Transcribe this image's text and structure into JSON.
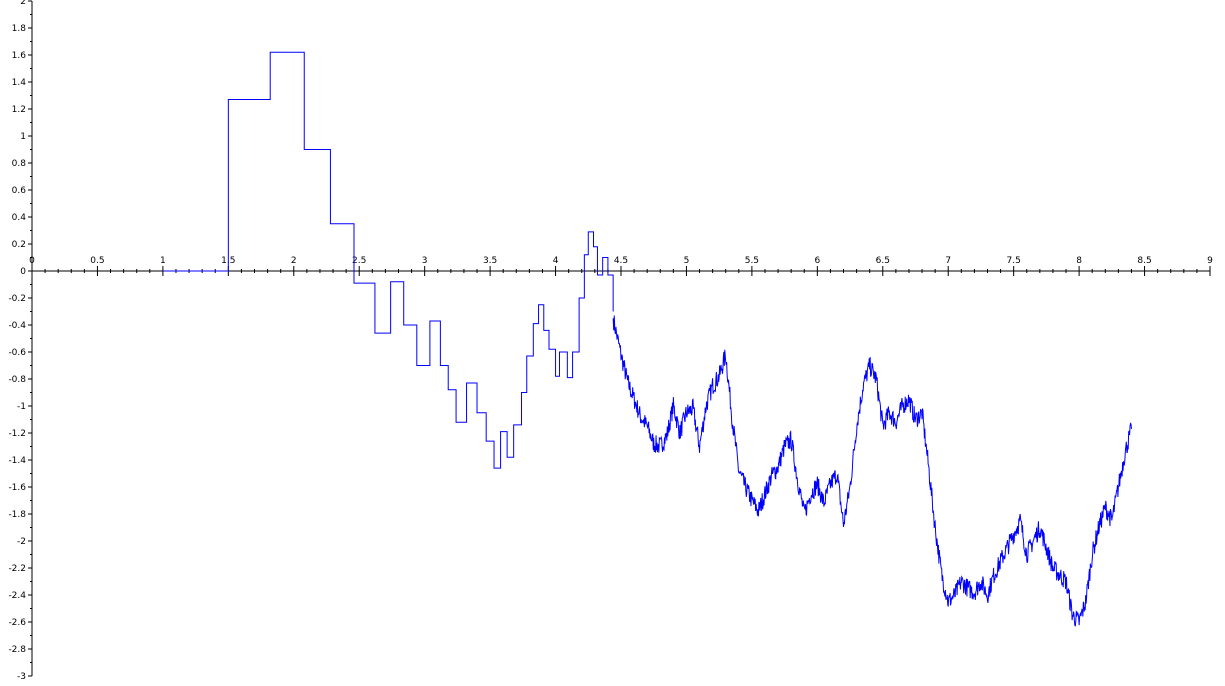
{
  "chart_data": {
    "type": "line",
    "title": "",
    "xlabel": "",
    "ylabel": "",
    "xlim": [
      0,
      9
    ],
    "ylim": [
      -3,
      2
    ],
    "x_ticks": [
      "0",
      "0.5",
      "1",
      "1.5",
      "2",
      "2.5",
      "3",
      "3.5",
      "4",
      "4.5",
      "5",
      "5.5",
      "6",
      "6.5",
      "7",
      "7.5",
      "8",
      "8.5",
      "9"
    ],
    "y_ticks": [
      "2",
      "1.8",
      "1.6",
      "1.4",
      "1.2",
      "1",
      "0.8",
      "0.6",
      "0.4",
      "0.2",
      "0",
      "-0.2",
      "-0.4",
      "-0.6",
      "-0.8",
      "-1",
      "-1.2",
      "-1.4",
      "-1.6",
      "-1.8",
      "-2",
      "-2.2",
      "-2.4",
      "-2.6",
      "-2.8",
      "-3"
    ],
    "grid": false,
    "series_color": "#0000ff",
    "series": [
      {
        "style": "step",
        "x": [
          1.0,
          1.5,
          1.82,
          2.08,
          2.28,
          2.46,
          2.62,
          2.74,
          2.84,
          2.94,
          3.04,
          3.12,
          3.18,
          3.24,
          3.32,
          3.4,
          3.47,
          3.53,
          3.58,
          3.63,
          3.68,
          3.74,
          3.78,
          3.83,
          3.87,
          3.91,
          3.95,
          4.0,
          4.03,
          4.09,
          4.13,
          4.18,
          4.22,
          4.25,
          4.29,
          4.32,
          4.36,
          4.4,
          4.44
        ],
        "y": [
          0.0,
          1.27,
          1.62,
          0.9,
          0.35,
          -0.09,
          -0.46,
          -0.08,
          -0.4,
          -0.7,
          -0.37,
          -0.7,
          -0.88,
          -1.12,
          -0.83,
          -1.05,
          -1.26,
          -1.46,
          -1.19,
          -1.38,
          -1.14,
          -0.9,
          -0.63,
          -0.39,
          -0.25,
          -0.44,
          -0.58,
          -0.78,
          -0.6,
          -0.79,
          -0.6,
          -0.2,
          0.12,
          0.29,
          0.18,
          -0.03,
          0.1,
          -0.03,
          -0.3
        ]
      },
      {
        "style": "line",
        "x": [
          4.44,
          4.5,
          4.55,
          4.6,
          4.65,
          4.7,
          4.75,
          4.8,
          4.85,
          4.9,
          4.95,
          5.0,
          5.05,
          5.1,
          5.15,
          5.2,
          5.25,
          5.3,
          5.35,
          5.4,
          5.45,
          5.5,
          5.55,
          5.6,
          5.65,
          5.7,
          5.75,
          5.8,
          5.85,
          5.9,
          5.95,
          6.0,
          6.05,
          6.1,
          6.15,
          6.2,
          6.25,
          6.3,
          6.35,
          6.4,
          6.45,
          6.5,
          6.55,
          6.6,
          6.65,
          6.7,
          6.75,
          6.8,
          6.85,
          6.9,
          6.95,
          7.0,
          7.05,
          7.1,
          7.15,
          7.2,
          7.25,
          7.3,
          7.35,
          7.4,
          7.45,
          7.5,
          7.55,
          7.6,
          7.65,
          7.7,
          7.75,
          7.8,
          7.85,
          7.9,
          7.95,
          8.0,
          8.05,
          8.1,
          8.15,
          8.2,
          8.25,
          8.3,
          8.35,
          8.4
        ],
        "y": [
          -0.35,
          -0.62,
          -0.82,
          -0.95,
          -1.08,
          -1.15,
          -1.28,
          -1.3,
          -1.22,
          -1.0,
          -1.2,
          -1.05,
          -1.02,
          -1.3,
          -1.0,
          -0.85,
          -0.78,
          -0.62,
          -1.1,
          -1.48,
          -1.6,
          -1.7,
          -1.78,
          -1.65,
          -1.52,
          -1.45,
          -1.3,
          -1.25,
          -1.55,
          -1.8,
          -1.65,
          -1.58,
          -1.72,
          -1.58,
          -1.5,
          -1.88,
          -1.6,
          -1.15,
          -0.85,
          -0.7,
          -0.8,
          -1.15,
          -1.05,
          -1.12,
          -1.0,
          -0.95,
          -1.1,
          -1.05,
          -1.45,
          -1.9,
          -2.25,
          -2.45,
          -2.4,
          -2.3,
          -2.35,
          -2.38,
          -2.3,
          -2.4,
          -2.25,
          -2.15,
          -2.05,
          -1.95,
          -1.85,
          -2.1,
          -2.0,
          -1.9,
          -2.05,
          -2.2,
          -2.25,
          -2.3,
          -2.55,
          -2.6,
          -2.45,
          -2.1,
          -1.9,
          -1.75,
          -1.85,
          -1.6,
          -1.35,
          -1.17
        ]
      }
    ]
  }
}
